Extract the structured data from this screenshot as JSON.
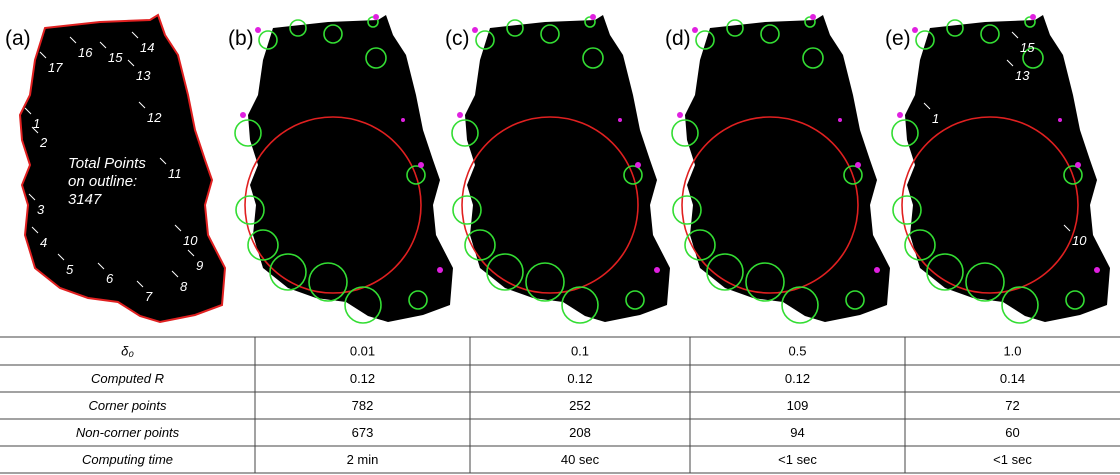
{
  "panels": [
    {
      "label": "(a)",
      "annotations": [
        "1",
        "2",
        "3",
        "4",
        "5",
        "6",
        "7",
        "8",
        "9",
        "10",
        "11",
        "12",
        "13",
        "14",
        "15",
        "16",
        "17"
      ],
      "note": [
        "Total Points",
        "on outline:",
        "3147"
      ]
    },
    {
      "label": "(b)"
    },
    {
      "label": "(c)"
    },
    {
      "label": "(d)"
    },
    {
      "label": "(e)",
      "annotations": [
        "1",
        "15",
        "13",
        "10"
      ]
    }
  ],
  "table": {
    "rows": [
      [
        "δ₀",
        "0.01",
        "0.1",
        "0.5",
        "1.0"
      ],
      [
        "Computed R",
        "0.12",
        "0.12",
        "0.12",
        "0.14"
      ],
      [
        "Corner points",
        "782",
        "252",
        "109",
        "72"
      ],
      [
        "Non-corner points",
        "673",
        "208",
        "94",
        "60"
      ],
      [
        "Computing time",
        "2 min",
        "40 sec",
        "<1 sec",
        "<1 sec"
      ]
    ]
  }
}
